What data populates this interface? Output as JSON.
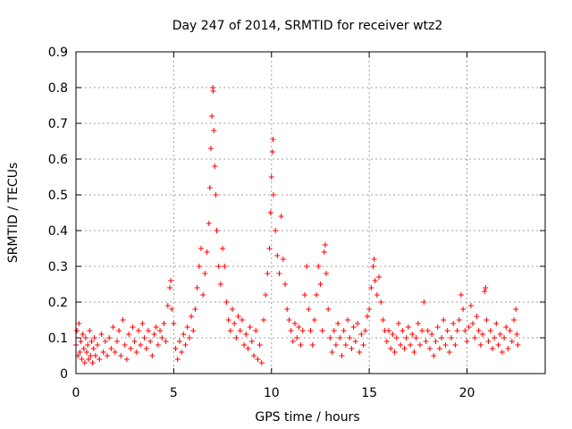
{
  "chart_data": {
    "type": "scatter",
    "title": "Day 247 of 2014, SRMTID for receiver wtz2",
    "xlabel": "GPS time / hours",
    "ylabel": "SRMTID / TECUs",
    "xlim": [
      0,
      24
    ],
    "ylim": [
      0,
      0.9
    ],
    "xticks": [
      0,
      5,
      10,
      15,
      20
    ],
    "yticks": [
      0,
      0.1,
      0.2,
      0.3,
      0.4,
      0.5,
      0.6,
      0.7,
      0.8,
      0.9
    ],
    "grid": true,
    "marker": "plus",
    "color": "#ff0000",
    "series": [
      {
        "name": "SRMTID",
        "points": [
          [
            0.0,
            0.08
          ],
          [
            0.05,
            0.12
          ],
          [
            0.1,
            0.05
          ],
          [
            0.15,
            0.14
          ],
          [
            0.2,
            0.06
          ],
          [
            0.25,
            0.09
          ],
          [
            0.3,
            0.04
          ],
          [
            0.35,
            0.11
          ],
          [
            0.4,
            0.07
          ],
          [
            0.45,
            0.03
          ],
          [
            0.5,
            0.1
          ],
          [
            0.55,
            0.06
          ],
          [
            0.6,
            0.08
          ],
          [
            0.65,
            0.04
          ],
          [
            0.7,
            0.12
          ],
          [
            0.75,
            0.05
          ],
          [
            0.8,
            0.09
          ],
          [
            0.85,
            0.03
          ],
          [
            0.9,
            0.07
          ],
          [
            0.95,
            0.1
          ],
          [
            1.0,
            0.05
          ],
          [
            1.1,
            0.08
          ],
          [
            1.2,
            0.04
          ],
          [
            1.3,
            0.11
          ],
          [
            1.4,
            0.06
          ],
          [
            1.5,
            0.09
          ],
          [
            1.6,
            0.05
          ],
          [
            1.7,
            0.1
          ],
          [
            1.8,
            0.07
          ],
          [
            1.9,
            0.13
          ],
          [
            2.0,
            0.06
          ],
          [
            2.1,
            0.09
          ],
          [
            2.2,
            0.12
          ],
          [
            2.3,
            0.05
          ],
          [
            2.4,
            0.15
          ],
          [
            2.5,
            0.08
          ],
          [
            2.6,
            0.04
          ],
          [
            2.7,
            0.11
          ],
          [
            2.8,
            0.07
          ],
          [
            2.9,
            0.13
          ],
          [
            3.0,
            0.09
          ],
          [
            3.1,
            0.06
          ],
          [
            3.2,
            0.12
          ],
          [
            3.3,
            0.08
          ],
          [
            3.4,
            0.14
          ],
          [
            3.5,
            0.1
          ],
          [
            3.6,
            0.07
          ],
          [
            3.7,
            0.12
          ],
          [
            3.8,
            0.09
          ],
          [
            3.9,
            0.05
          ],
          [
            4.0,
            0.11
          ],
          [
            4.1,
            0.13
          ],
          [
            4.2,
            0.08
          ],
          [
            4.3,
            0.12
          ],
          [
            4.4,
            0.1
          ],
          [
            4.5,
            0.14
          ],
          [
            4.6,
            0.09
          ],
          [
            4.7,
            0.19
          ],
          [
            4.8,
            0.24
          ],
          [
            4.85,
            0.26
          ],
          [
            4.9,
            0.18
          ],
          [
            5.0,
            0.14
          ],
          [
            5.1,
            0.07
          ],
          [
            5.2,
            0.04
          ],
          [
            5.3,
            0.09
          ],
          [
            5.4,
            0.06
          ],
          [
            5.5,
            0.11
          ],
          [
            5.6,
            0.08
          ],
          [
            5.7,
            0.13
          ],
          [
            5.8,
            0.1
          ],
          [
            5.9,
            0.16
          ],
          [
            6.0,
            0.12
          ],
          [
            6.1,
            0.18
          ],
          [
            6.2,
            0.24
          ],
          [
            6.3,
            0.3
          ],
          [
            6.4,
            0.35
          ],
          [
            6.5,
            0.22
          ],
          [
            6.6,
            0.28
          ],
          [
            6.7,
            0.34
          ],
          [
            6.8,
            0.42
          ],
          [
            6.85,
            0.52
          ],
          [
            6.9,
            0.63
          ],
          [
            6.95,
            0.72
          ],
          [
            7.0,
            0.8
          ],
          [
            7.02,
            0.79
          ],
          [
            7.05,
            0.68
          ],
          [
            7.1,
            0.58
          ],
          [
            7.15,
            0.5
          ],
          [
            7.2,
            0.4
          ],
          [
            7.3,
            0.3
          ],
          [
            7.4,
            0.25
          ],
          [
            7.5,
            0.35
          ],
          [
            7.6,
            0.3
          ],
          [
            7.7,
            0.2
          ],
          [
            7.8,
            0.15
          ],
          [
            7.9,
            0.12
          ],
          [
            8.0,
            0.18
          ],
          [
            8.1,
            0.14
          ],
          [
            8.2,
            0.1
          ],
          [
            8.3,
            0.16
          ],
          [
            8.4,
            0.12
          ],
          [
            8.5,
            0.15
          ],
          [
            8.6,
            0.08
          ],
          [
            8.7,
            0.11
          ],
          [
            8.8,
            0.07
          ],
          [
            8.9,
            0.13
          ],
          [
            9.0,
            0.09
          ],
          [
            9.1,
            0.05
          ],
          [
            9.2,
            0.12
          ],
          [
            9.3,
            0.04
          ],
          [
            9.4,
            0.08
          ],
          [
            9.5,
            0.03
          ],
          [
            9.6,
            0.15
          ],
          [
            9.7,
            0.22
          ],
          [
            9.8,
            0.28
          ],
          [
            9.9,
            0.35
          ],
          [
            9.95,
            0.45
          ],
          [
            10.0,
            0.55
          ],
          [
            10.05,
            0.62
          ],
          [
            10.08,
            0.655
          ],
          [
            10.1,
            0.5
          ],
          [
            10.2,
            0.4
          ],
          [
            10.3,
            0.33
          ],
          [
            10.4,
            0.28
          ],
          [
            10.5,
            0.44
          ],
          [
            10.6,
            0.32
          ],
          [
            10.7,
            0.25
          ],
          [
            10.8,
            0.18
          ],
          [
            10.9,
            0.15
          ],
          [
            11.0,
            0.12
          ],
          [
            11.1,
            0.09
          ],
          [
            11.2,
            0.14
          ],
          [
            11.3,
            0.1
          ],
          [
            11.4,
            0.13
          ],
          [
            11.5,
            0.08
          ],
          [
            11.6,
            0.12
          ],
          [
            11.7,
            0.22
          ],
          [
            11.8,
            0.3
          ],
          [
            11.9,
            0.18
          ],
          [
            12.0,
            0.12
          ],
          [
            12.1,
            0.08
          ],
          [
            12.2,
            0.15
          ],
          [
            12.3,
            0.22
          ],
          [
            12.4,
            0.3
          ],
          [
            12.5,
            0.25
          ],
          [
            12.6,
            0.12
          ],
          [
            12.7,
            0.34
          ],
          [
            12.75,
            0.36
          ],
          [
            12.8,
            0.28
          ],
          [
            12.9,
            0.18
          ],
          [
            13.0,
            0.1
          ],
          [
            13.1,
            0.06
          ],
          [
            13.2,
            0.12
          ],
          [
            13.3,
            0.08
          ],
          [
            13.4,
            0.14
          ],
          [
            13.5,
            0.1
          ],
          [
            13.6,
            0.05
          ],
          [
            13.7,
            0.12
          ],
          [
            13.8,
            0.08
          ],
          [
            13.9,
            0.15
          ],
          [
            14.0,
            0.1
          ],
          [
            14.1,
            0.07
          ],
          [
            14.2,
            0.13
          ],
          [
            14.3,
            0.09
          ],
          [
            14.4,
            0.14
          ],
          [
            14.5,
            0.06
          ],
          [
            14.6,
            0.11
          ],
          [
            14.7,
            0.08
          ],
          [
            14.8,
            0.12
          ],
          [
            14.9,
            0.16
          ],
          [
            15.0,
            0.18
          ],
          [
            15.1,
            0.24
          ],
          [
            15.2,
            0.3
          ],
          [
            15.25,
            0.32
          ],
          [
            15.3,
            0.26
          ],
          [
            15.4,
            0.22
          ],
          [
            15.5,
            0.27
          ],
          [
            15.6,
            0.2
          ],
          [
            15.7,
            0.15
          ],
          [
            15.8,
            0.12
          ],
          [
            15.9,
            0.09
          ],
          [
            16.0,
            0.12
          ],
          [
            16.1,
            0.07
          ],
          [
            16.2,
            0.11
          ],
          [
            16.3,
            0.06
          ],
          [
            16.4,
            0.1
          ],
          [
            16.5,
            0.14
          ],
          [
            16.6,
            0.08
          ],
          [
            16.7,
            0.12
          ],
          [
            16.8,
            0.07
          ],
          [
            16.9,
            0.1
          ],
          [
            17.0,
            0.13
          ],
          [
            17.1,
            0.08
          ],
          [
            17.2,
            0.11
          ],
          [
            17.3,
            0.06
          ],
          [
            17.4,
            0.1
          ],
          [
            17.5,
            0.14
          ],
          [
            17.6,
            0.08
          ],
          [
            17.7,
            0.12
          ],
          [
            17.8,
            0.2
          ],
          [
            17.9,
            0.09
          ],
          [
            18.0,
            0.12
          ],
          [
            18.1,
            0.07
          ],
          [
            18.2,
            0.11
          ],
          [
            18.3,
            0.05
          ],
          [
            18.4,
            0.09
          ],
          [
            18.5,
            0.13
          ],
          [
            18.6,
            0.07
          ],
          [
            18.7,
            0.1
          ],
          [
            18.8,
            0.15
          ],
          [
            18.9,
            0.08
          ],
          [
            19.0,
            0.12
          ],
          [
            19.1,
            0.06
          ],
          [
            19.2,
            0.1
          ],
          [
            19.3,
            0.14
          ],
          [
            19.4,
            0.08
          ],
          [
            19.5,
            0.12
          ],
          [
            19.6,
            0.15
          ],
          [
            19.7,
            0.22
          ],
          [
            19.8,
            0.18
          ],
          [
            19.9,
            0.12
          ],
          [
            20.0,
            0.09
          ],
          [
            20.1,
            0.13
          ],
          [
            20.2,
            0.19
          ],
          [
            20.3,
            0.14
          ],
          [
            20.4,
            0.1
          ],
          [
            20.5,
            0.16
          ],
          [
            20.6,
            0.12
          ],
          [
            20.7,
            0.08
          ],
          [
            20.8,
            0.11
          ],
          [
            20.9,
            0.23
          ],
          [
            20.95,
            0.24
          ],
          [
            21.0,
            0.15
          ],
          [
            21.1,
            0.09
          ],
          [
            21.2,
            0.12
          ],
          [
            21.3,
            0.07
          ],
          [
            21.4,
            0.1
          ],
          [
            21.5,
            0.14
          ],
          [
            21.6,
            0.08
          ],
          [
            21.7,
            0.11
          ],
          [
            21.8,
            0.06
          ],
          [
            21.9,
            0.1
          ],
          [
            22.0,
            0.13
          ],
          [
            22.1,
            0.07
          ],
          [
            22.2,
            0.12
          ],
          [
            22.3,
            0.09
          ],
          [
            22.4,
            0.15
          ],
          [
            22.5,
            0.18
          ],
          [
            22.55,
            0.11
          ],
          [
            22.6,
            0.08
          ]
        ]
      }
    ]
  }
}
